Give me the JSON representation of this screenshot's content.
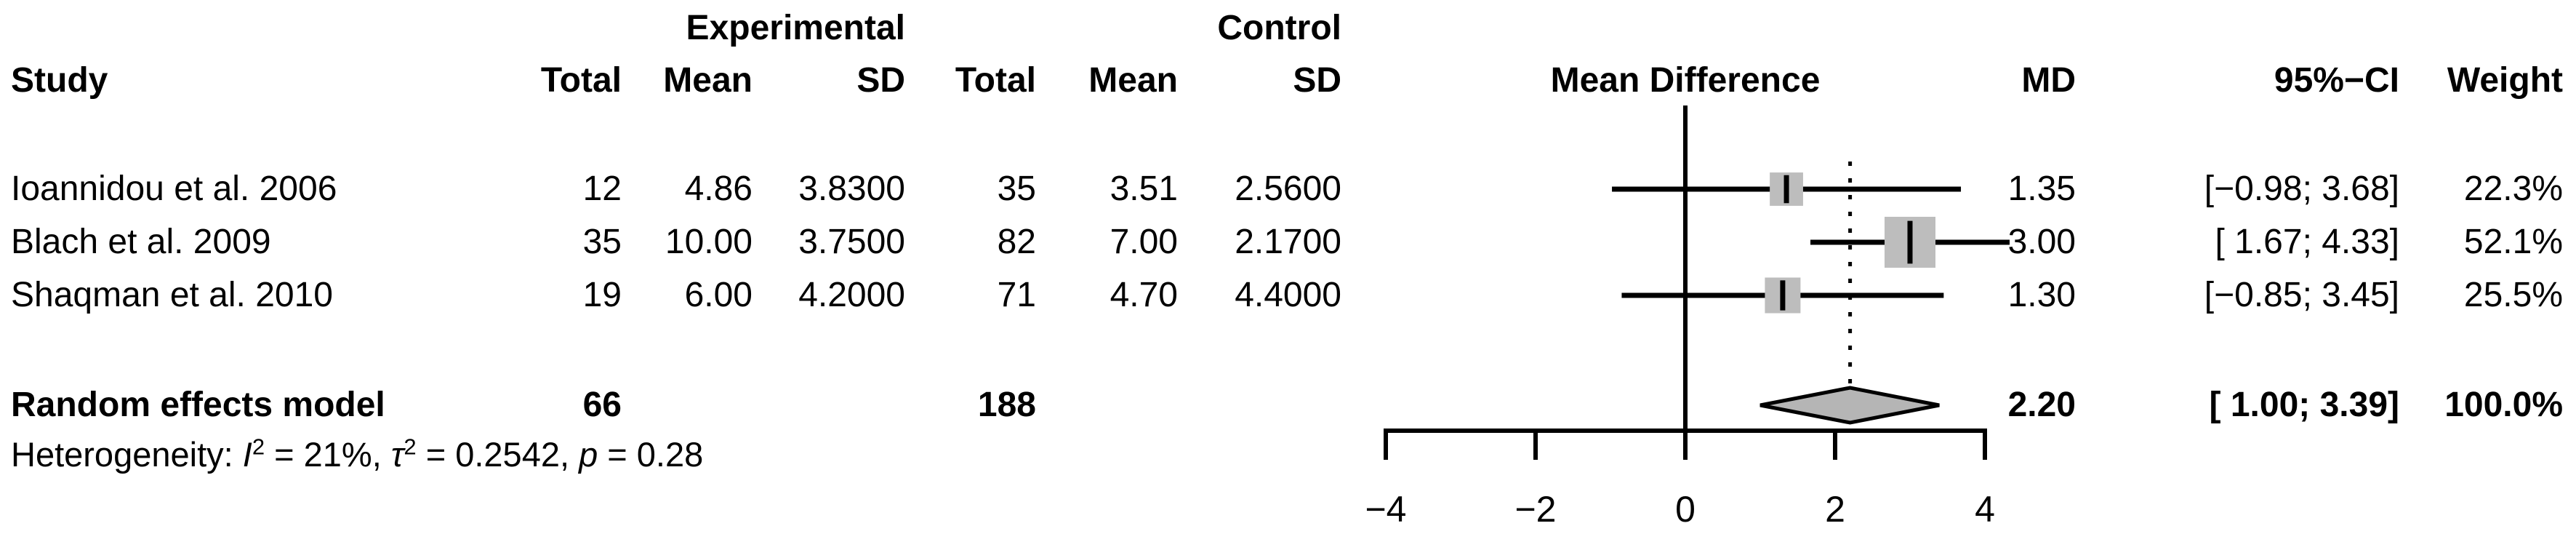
{
  "table": {
    "group_headers": {
      "experimental": "Experimental",
      "control": "Control"
    },
    "columns": {
      "study": "Study",
      "total": "Total",
      "mean": "Mean",
      "sd": "SD",
      "mean_difference": "Mean Difference",
      "md": "MD",
      "ci": "95%−CI",
      "weight": "Weight"
    },
    "rows": [
      {
        "study": "Ioannidou et al. 2006",
        "exp_total": "12",
        "exp_mean": "4.86",
        "exp_sd": "3.8300",
        "ctrl_total": "35",
        "ctrl_mean": "3.51",
        "ctrl_sd": "2.5600",
        "md": "1.35",
        "ci": "[−0.98; 3.68]",
        "weight": "22.3%"
      },
      {
        "study": "Blach et al. 2009",
        "exp_total": "35",
        "exp_mean": "10.00",
        "exp_sd": "3.7500",
        "ctrl_total": "82",
        "ctrl_mean": "7.00",
        "ctrl_sd": "2.1700",
        "md": "3.00",
        "ci": "[ 1.67; 4.33]",
        "weight": "52.1%"
      },
      {
        "study": "Shaqman et al. 2010",
        "exp_total": "19",
        "exp_mean": "6.00",
        "exp_sd": "4.2000",
        "ctrl_total": "71",
        "ctrl_mean": "4.70",
        "ctrl_sd": "4.4000",
        "md": "1.30",
        "ci": "[−0.85; 3.45]",
        "weight": "25.5%"
      }
    ],
    "summary": {
      "label": "Random effects model",
      "exp_total": "66",
      "ctrl_total": "188",
      "md": "2.20",
      "ci": "[ 1.00; 3.39]",
      "weight": "100.0%"
    },
    "heterogeneity": {
      "label": "Heterogeneity: ",
      "i2_var": "I",
      "i2_sup": "2",
      "i2_val": " = 21%, ",
      "tau_var": "τ",
      "tau_sup": "2",
      "tau_val": " = 0.2542, ",
      "p_var": "p",
      "p_val": " = 0.28"
    }
  },
  "chart_data": {
    "type": "forest",
    "title": "Mean Difference",
    "x_axis": {
      "ticks": [
        -4,
        -2,
        0,
        2,
        4
      ],
      "range": [
        -4.6,
        4.6
      ],
      "grid": false
    },
    "zero_line": 0,
    "pooled_dotted_line_at": 2.2,
    "studies": [
      {
        "name": "Ioannidou et al. 2006",
        "md": 1.35,
        "ci_low": -0.98,
        "ci_high": 3.68,
        "weight_pct": 22.3
      },
      {
        "name": "Blach et al. 2009",
        "md": 3.0,
        "ci_low": 1.67,
        "ci_high": 4.33,
        "weight_pct": 52.1
      },
      {
        "name": "Shaqman et al. 2010",
        "md": 1.3,
        "ci_low": -0.85,
        "ci_high": 3.45,
        "weight_pct": 25.5
      }
    ],
    "summary_diamond": {
      "name": "Random effects model",
      "md": 2.2,
      "ci_low": 1.0,
      "ci_high": 3.39,
      "weight_pct": 100.0
    },
    "colors": {
      "square_fill": "#bdbdbd",
      "diamond_fill": "#b5b5b5",
      "line": "#000000"
    }
  }
}
